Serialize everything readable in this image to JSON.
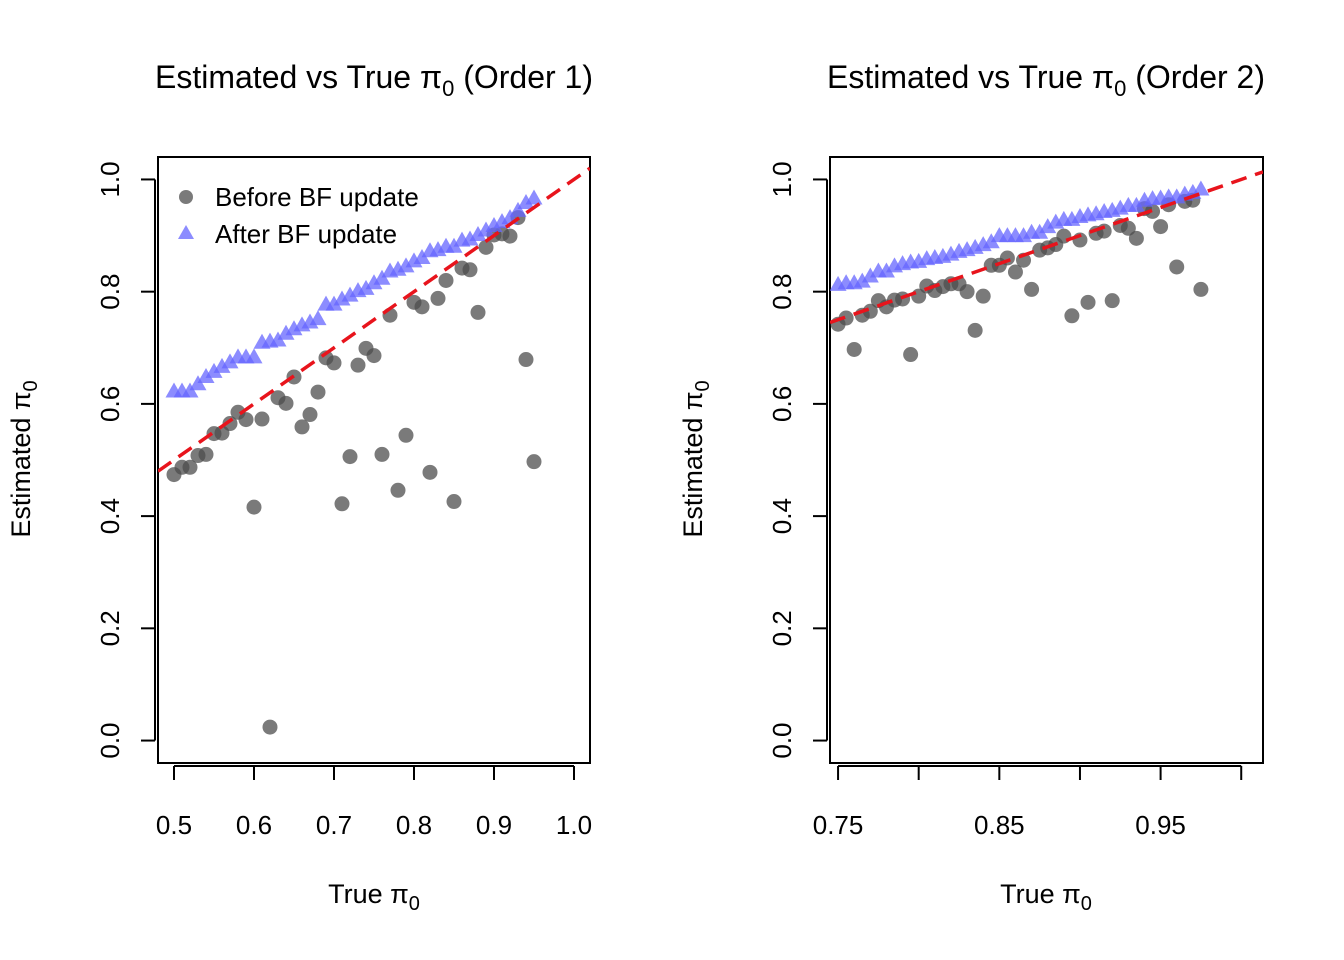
{
  "colors": {
    "before": "#4d4d4d",
    "after": "#6666ff",
    "identity": "#e8141c"
  },
  "legend": {
    "before_label": "Before BF update",
    "after_label": "After BF update",
    "placement": "top-left of first panel"
  },
  "chart_data": [
    {
      "type": "scatter",
      "title_prefix": "Estimated vs True ",
      "title_suffix": " (Order 1)",
      "symbol": "π",
      "subscript": "0",
      "xlabel_prefix": "True ",
      "ylabel_prefix": "Estimated ",
      "xlim": [
        0.48,
        1.02
      ],
      "ylim": [
        -0.04,
        1.04
      ],
      "xticks": [
        "0.5",
        "0.6",
        "0.7",
        "0.8",
        "0.9",
        "1.0"
      ],
      "yticks": [
        "0.0",
        "0.2",
        "0.4",
        "0.6",
        "0.8",
        "1.0"
      ],
      "reference_line": "y = x (dashed)",
      "series": [
        {
          "key": "before",
          "marker": "circle",
          "points": [
            [
              0.5,
              0.474
            ],
            [
              0.51,
              0.487
            ],
            [
              0.52,
              0.487
            ],
            [
              0.53,
              0.508
            ],
            [
              0.54,
              0.51
            ],
            [
              0.55,
              0.547
            ],
            [
              0.56,
              0.548
            ],
            [
              0.57,
              0.565
            ],
            [
              0.58,
              0.585
            ],
            [
              0.59,
              0.572
            ],
            [
              0.6,
              0.416
            ],
            [
              0.61,
              0.573
            ],
            [
              0.62,
              0.024
            ],
            [
              0.63,
              0.611
            ],
            [
              0.64,
              0.601
            ],
            [
              0.65,
              0.648
            ],
            [
              0.66,
              0.559
            ],
            [
              0.67,
              0.581
            ],
            [
              0.68,
              0.621
            ],
            [
              0.69,
              0.682
            ],
            [
              0.7,
              0.673
            ],
            [
              0.71,
              0.422
            ],
            [
              0.72,
              0.506
            ],
            [
              0.73,
              0.669
            ],
            [
              0.74,
              0.699
            ],
            [
              0.75,
              0.686
            ],
            [
              0.76,
              0.51
            ],
            [
              0.77,
              0.758
            ],
            [
              0.78,
              0.446
            ],
            [
              0.79,
              0.544
            ],
            [
              0.8,
              0.781
            ],
            [
              0.81,
              0.773
            ],
            [
              0.82,
              0.478
            ],
            [
              0.83,
              0.788
            ],
            [
              0.84,
              0.82
            ],
            [
              0.85,
              0.426
            ],
            [
              0.86,
              0.842
            ],
            [
              0.87,
              0.839
            ],
            [
              0.88,
              0.763
            ],
            [
              0.89,
              0.879
            ],
            [
              0.9,
              0.901
            ],
            [
              0.91,
              0.903
            ],
            [
              0.92,
              0.899
            ],
            [
              0.93,
              0.932
            ],
            [
              0.94,
              0.679
            ],
            [
              0.95,
              0.497
            ]
          ]
        },
        {
          "key": "after",
          "marker": "triangle",
          "points": [
            [
              0.5,
              0.622
            ],
            [
              0.51,
              0.622
            ],
            [
              0.52,
              0.622
            ],
            [
              0.53,
              0.635
            ],
            [
              0.54,
              0.648
            ],
            [
              0.55,
              0.657
            ],
            [
              0.56,
              0.666
            ],
            [
              0.57,
              0.674
            ],
            [
              0.58,
              0.683
            ],
            [
              0.59,
              0.683
            ],
            [
              0.6,
              0.683
            ],
            [
              0.61,
              0.709
            ],
            [
              0.62,
              0.711
            ],
            [
              0.63,
              0.713
            ],
            [
              0.64,
              0.725
            ],
            [
              0.65,
              0.733
            ],
            [
              0.66,
              0.74
            ],
            [
              0.67,
              0.745
            ],
            [
              0.68,
              0.751
            ],
            [
              0.69,
              0.777
            ],
            [
              0.7,
              0.777
            ],
            [
              0.71,
              0.786
            ],
            [
              0.72,
              0.793
            ],
            [
              0.73,
              0.801
            ],
            [
              0.74,
              0.805
            ],
            [
              0.75,
              0.815
            ],
            [
              0.76,
              0.823
            ],
            [
              0.77,
              0.836
            ],
            [
              0.78,
              0.839
            ],
            [
              0.79,
              0.845
            ],
            [
              0.8,
              0.854
            ],
            [
              0.81,
              0.86
            ],
            [
              0.82,
              0.872
            ],
            [
              0.83,
              0.874
            ],
            [
              0.84,
              0.88
            ],
            [
              0.85,
              0.88
            ],
            [
              0.86,
              0.891
            ],
            [
              0.87,
              0.893
            ],
            [
              0.88,
              0.901
            ],
            [
              0.89,
              0.909
            ],
            [
              0.9,
              0.917
            ],
            [
              0.91,
              0.924
            ],
            [
              0.92,
              0.931
            ],
            [
              0.93,
              0.944
            ],
            [
              0.94,
              0.958
            ],
            [
              0.95,
              0.966
            ]
          ]
        }
      ]
    },
    {
      "type": "scatter",
      "title_prefix": "Estimated vs True ",
      "title_suffix": " (Order 2)",
      "symbol": "π",
      "subscript": "0",
      "xlabel_prefix": "True ",
      "ylabel_prefix": "Estimated ",
      "xlim": [
        0.745,
        1.0135
      ],
      "ylim": [
        -0.04,
        1.04
      ],
      "xticks": [
        "0.75",
        "",
        "0.85",
        "",
        "0.95",
        ""
      ],
      "xtick_values": [
        0.75,
        0.8,
        0.85,
        0.9,
        0.95,
        1.0
      ],
      "yticks": [
        "0.0",
        "0.2",
        "0.4",
        "0.6",
        "0.8",
        "1.0"
      ],
      "reference_line": "y = x (dashed)",
      "series": [
        {
          "key": "before",
          "marker": "circle",
          "points": [
            [
              0.75,
              0.742
            ],
            [
              0.755,
              0.753
            ],
            [
              0.76,
              0.697
            ],
            [
              0.765,
              0.758
            ],
            [
              0.77,
              0.765
            ],
            [
              0.775,
              0.784
            ],
            [
              0.78,
              0.773
            ],
            [
              0.785,
              0.785
            ],
            [
              0.79,
              0.787
            ],
            [
              0.795,
              0.688
            ],
            [
              0.8,
              0.792
            ],
            [
              0.805,
              0.81
            ],
            [
              0.81,
              0.802
            ],
            [
              0.815,
              0.809
            ],
            [
              0.82,
              0.814
            ],
            [
              0.825,
              0.814
            ],
            [
              0.83,
              0.8
            ],
            [
              0.835,
              0.731
            ],
            [
              0.84,
              0.792
            ],
            [
              0.845,
              0.847
            ],
            [
              0.85,
              0.847
            ],
            [
              0.855,
              0.86
            ],
            [
              0.86,
              0.835
            ],
            [
              0.865,
              0.856
            ],
            [
              0.87,
              0.804
            ],
            [
              0.875,
              0.874
            ],
            [
              0.88,
              0.878
            ],
            [
              0.885,
              0.884
            ],
            [
              0.89,
              0.899
            ],
            [
              0.895,
              0.757
            ],
            [
              0.9,
              0.892
            ],
            [
              0.905,
              0.781
            ],
            [
              0.91,
              0.904
            ],
            [
              0.915,
              0.908
            ],
            [
              0.92,
              0.784
            ],
            [
              0.925,
              0.918
            ],
            [
              0.93,
              0.913
            ],
            [
              0.935,
              0.895
            ],
            [
              0.94,
              0.948
            ],
            [
              0.945,
              0.943
            ],
            [
              0.95,
              0.916
            ],
            [
              0.955,
              0.955
            ],
            [
              0.96,
              0.844
            ],
            [
              0.965,
              0.961
            ],
            [
              0.97,
              0.963
            ],
            [
              0.975,
              0.804
            ]
          ]
        },
        {
          "key": "after",
          "marker": "triangle",
          "points": [
            [
              0.75,
              0.812
            ],
            [
              0.755,
              0.815
            ],
            [
              0.76,
              0.815
            ],
            [
              0.765,
              0.818
            ],
            [
              0.77,
              0.827
            ],
            [
              0.775,
              0.836
            ],
            [
              0.78,
              0.836
            ],
            [
              0.785,
              0.845
            ],
            [
              0.79,
              0.849
            ],
            [
              0.795,
              0.852
            ],
            [
              0.8,
              0.853
            ],
            [
              0.805,
              0.858
            ],
            [
              0.81,
              0.86
            ],
            [
              0.815,
              0.862
            ],
            [
              0.82,
              0.866
            ],
            [
              0.825,
              0.871
            ],
            [
              0.83,
              0.874
            ],
            [
              0.835,
              0.878
            ],
            [
              0.84,
              0.883
            ],
            [
              0.845,
              0.888
            ],
            [
              0.85,
              0.899
            ],
            [
              0.855,
              0.899
            ],
            [
              0.86,
              0.899
            ],
            [
              0.865,
              0.899
            ],
            [
              0.87,
              0.905
            ],
            [
              0.875,
              0.905
            ],
            [
              0.88,
              0.915
            ],
            [
              0.885,
              0.923
            ],
            [
              0.89,
              0.928
            ],
            [
              0.895,
              0.928
            ],
            [
              0.9,
              0.933
            ],
            [
              0.905,
              0.936
            ],
            [
              0.91,
              0.938
            ],
            [
              0.915,
              0.942
            ],
            [
              0.92,
              0.944
            ],
            [
              0.925,
              0.948
            ],
            [
              0.93,
              0.953
            ],
            [
              0.935,
              0.953
            ],
            [
              0.94,
              0.962
            ],
            [
              0.945,
              0.965
            ],
            [
              0.95,
              0.966
            ],
            [
              0.955,
              0.968
            ],
            [
              0.96,
              0.968
            ],
            [
              0.965,
              0.973
            ],
            [
              0.97,
              0.976
            ],
            [
              0.975,
              0.982
            ]
          ]
        }
      ]
    }
  ]
}
